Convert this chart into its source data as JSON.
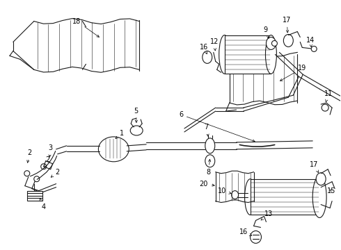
{
  "bg_color": "#ffffff",
  "line_color": "#1a1a1a",
  "fig_width": 4.9,
  "fig_height": 3.6,
  "dpi": 100,
  "label_fontsize": 7.0,
  "arrow_lw": 0.5,
  "component_lw": 0.8
}
